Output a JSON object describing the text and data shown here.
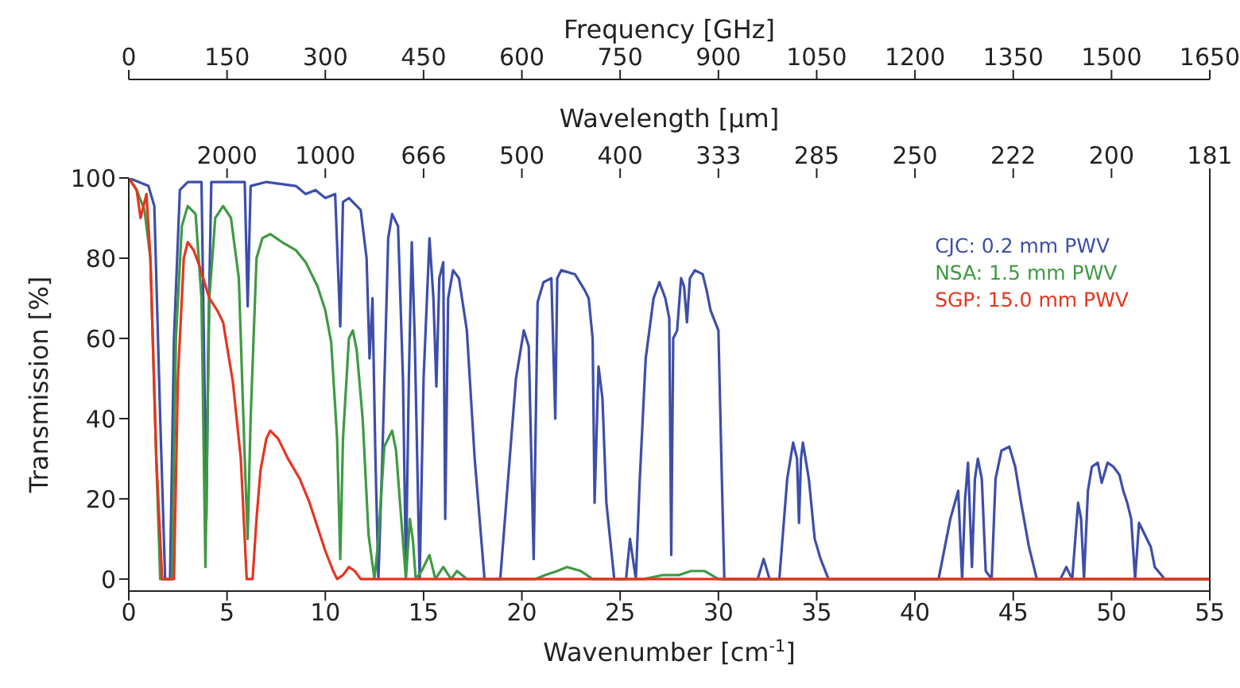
{
  "chart_data": {
    "type": "line",
    "xlabel": "Wavenumber [cm$^{-1}$]",
    "ylabel": "Transmission [%]",
    "x2label": "Frequency [GHz]",
    "xlim": [
      0,
      55
    ],
    "xticks": [
      0,
      5,
      10,
      15,
      20,
      25,
      30,
      35,
      40,
      45,
      50,
      55
    ],
    "ylim": [
      -3,
      100
    ],
    "yticks": [
      0,
      20,
      40,
      60,
      80,
      100
    ],
    "x2lim": [
      0,
      1650
    ],
    "x2ticks": [
      0,
      150,
      300,
      450,
      600,
      750,
      900,
      1050,
      1200,
      1350,
      1500,
      1650
    ],
    "annotations": [
      "Wavelength [μm]",
      "2000",
      "1000",
      "666",
      "500",
      "400",
      "333",
      "285",
      "250",
      "222",
      "200",
      "181"
    ],
    "legend": "top right",
    "series": [
      {
        "name": "CJC: 0.2 mm PWV",
        "color": "#3d4eaa",
        "x": [
          0,
          0.5,
          1.0,
          1.3,
          1.6,
          1.85,
          2.1,
          2.3,
          2.6,
          3.0,
          3.7,
          3.85,
          3.95,
          4.05,
          4.2,
          5.9,
          6.05,
          6.2,
          7,
          8.5,
          9,
          9.5,
          10.0,
          10.5,
          10.76,
          10.9,
          11.2,
          11.8,
          12.1,
          12.25,
          12.4,
          12.55,
          12.7,
          12.9,
          13.2,
          13.4,
          13.7,
          13.95,
          14.1,
          14.25,
          14.4,
          14.55,
          14.8,
          15.0,
          15.3,
          15.5,
          15.65,
          15.8,
          16.0,
          16.1,
          16.25,
          16.5,
          16.8,
          17.2,
          17.6,
          18.1,
          18.9,
          19.3,
          19.7,
          20.1,
          20.35,
          20.6,
          20.8,
          21.1,
          21.5,
          21.7,
          21.8,
          22.0,
          22.7,
          23.2,
          23.4,
          23.6,
          23.7,
          23.9,
          24.1,
          24.3,
          24.7,
          25.3,
          25.5,
          25.8,
          26.0,
          26.3,
          26.7,
          27.0,
          27.3,
          27.5,
          27.6,
          27.7,
          27.9,
          28.1,
          28.25,
          28.4,
          28.55,
          28.8,
          29.2,
          29.4,
          29.6,
          30.0,
          30.15,
          30.3,
          32.0,
          32.3,
          32.6,
          33.1,
          33.5,
          33.8,
          34.0,
          34.1,
          34.2,
          34.3,
          34.6,
          34.9,
          35.2,
          35.6,
          41.2,
          41.8,
          42.2,
          42.4,
          42.55,
          42.7,
          42.9,
          43.05,
          43.2,
          43.4,
          43.6,
          43.9,
          44.1,
          44.4,
          44.8,
          45.1,
          45.4,
          45.8,
          46.2,
          47.4,
          47.7,
          48.0,
          48.3,
          48.45,
          48.6,
          48.8,
          49.0,
          49.3,
          49.5,
          49.8,
          50.1,
          50.4,
          50.6,
          50.8,
          51.0,
          51.2,
          51.4,
          51.7,
          52.0,
          52.2,
          52.7,
          55
        ],
        "values": [
          100,
          99,
          98,
          93,
          40,
          0,
          0,
          60,
          97,
          99,
          99,
          50,
          15,
          60,
          99,
          99,
          68,
          98,
          99,
          98,
          96,
          97,
          95,
          96,
          63,
          94,
          95,
          92,
          80,
          55,
          70,
          30,
          0,
          30,
          85,
          91,
          88,
          50,
          2,
          50,
          84,
          60,
          0,
          50,
          85,
          70,
          48,
          75,
          79,
          15,
          70,
          77,
          75,
          62,
          30,
          0,
          0,
          25,
          50,
          62,
          58,
          5,
          69,
          74,
          75,
          40,
          75,
          77,
          76,
          72,
          70,
          60,
          19,
          53,
          45,
          19,
          0,
          0,
          10,
          0,
          25,
          55,
          70,
          74,
          70,
          65,
          6,
          60,
          62,
          75,
          73,
          64,
          75,
          77,
          76,
          72,
          67,
          62,
          30,
          0,
          0,
          5,
          0,
          0,
          25,
          34,
          30,
          14,
          30,
          34,
          25,
          10,
          5,
          0,
          0,
          15,
          22,
          0,
          20,
          29,
          3,
          25,
          30,
          25,
          2,
          0,
          25,
          32,
          33,
          28,
          19,
          8,
          0,
          0,
          3,
          0,
          19,
          15,
          0,
          22,
          28,
          29,
          24,
          29,
          28,
          26,
          22,
          19,
          15,
          0,
          14,
          11,
          8,
          3,
          0,
          0
        ]
      },
      {
        "name": "NSA: 1.5 mm PWV",
        "color": "#3f9a43",
        "x": [
          0,
          0.4,
          0.8,
          1.1,
          1.4,
          1.6,
          2.2,
          2.4,
          2.7,
          3.0,
          3.4,
          3.7,
          3.9,
          4.1,
          4.4,
          4.8,
          5.2,
          5.6,
          5.9,
          6.05,
          6.2,
          6.5,
          6.8,
          7.2,
          7.8,
          8.5,
          9.0,
          9.6,
          10.0,
          10.3,
          10.6,
          10.76,
          10.9,
          11.2,
          11.4,
          11.6,
          11.9,
          12.2,
          12.5,
          12.7,
          13.0,
          13.4,
          13.6,
          13.8,
          14.1,
          14.3,
          14.45,
          14.6,
          14.9,
          15.3,
          15.6,
          16.0,
          16.4,
          16.7,
          17.2,
          20.7,
          21.2,
          21.8,
          22.3,
          23.0,
          23.6,
          26.2,
          27.2,
          28.0,
          28.6,
          29.3,
          30.0,
          55
        ],
        "values": [
          100,
          97,
          92,
          80,
          30,
          0,
          0,
          60,
          88,
          93,
          91,
          70,
          3,
          70,
          90,
          93,
          90,
          75,
          30,
          10,
          40,
          80,
          85,
          86,
          84,
          82,
          79,
          73,
          67,
          59,
          35,
          5,
          35,
          60,
          62,
          57,
          40,
          11,
          0,
          10,
          33,
          37,
          32,
          19,
          0,
          15,
          10,
          0,
          2,
          6,
          0,
          3,
          0,
          2,
          0,
          0,
          1,
          2,
          3,
          2,
          0,
          0,
          1,
          1,
          2,
          2,
          0,
          0
        ]
      },
      {
        "name": "SGP: 15.0 mm PWV",
        "color": "#e8341f",
        "x": [
          0,
          0.4,
          0.6,
          0.9,
          1.1,
          1.4,
          1.7,
          2.3,
          2.5,
          2.8,
          3.0,
          3.3,
          3.6,
          4.1,
          4.5,
          4.8,
          5.3,
          5.7,
          5.95,
          6.0,
          6.3,
          6.5,
          6.7,
          7.0,
          7.2,
          7.6,
          8.1,
          8.7,
          9.2,
          9.6,
          10.0,
          10.4,
          10.6,
          10.9,
          11.2,
          11.5,
          11.8,
          55
        ],
        "values": [
          100,
          97,
          90,
          96,
          80,
          30,
          0,
          0,
          50,
          80,
          84,
          82,
          78,
          70,
          67,
          64,
          49,
          30,
          5,
          0,
          0,
          15,
          27,
          35,
          37,
          35,
          30,
          25,
          19,
          13,
          7,
          2,
          0,
          1,
          3,
          2,
          0,
          0
        ]
      }
    ]
  }
}
